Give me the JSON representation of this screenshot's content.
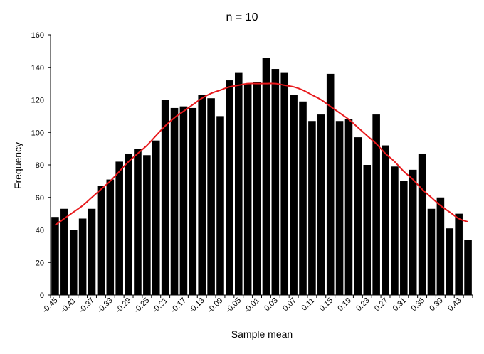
{
  "chart_data": {
    "type": "bar",
    "title": "n = 10",
    "xlabel": "Sample mean",
    "ylabel": "Frequency",
    "ylim": [
      0,
      160
    ],
    "yticks": [
      0,
      20,
      40,
      60,
      80,
      100,
      120,
      140,
      160
    ],
    "grid": false,
    "categories": [
      "-0.45",
      "-0.43",
      "-0.41",
      "-0.39",
      "-0.37",
      "-0.35",
      "-0.33",
      "-0.31",
      "-0.29",
      "-0.27",
      "-0.25",
      "-0.23",
      "-0.21",
      "-0.19",
      "-0.17",
      "-0.15",
      "-0.13",
      "-0.11",
      "-0.09",
      "-0.07",
      "-0.05",
      "-0.03",
      "-0.01",
      "0.01",
      "0.03",
      "0.05",
      "0.07",
      "0.09",
      "0.11",
      "0.13",
      "0.15",
      "0.17",
      "0.19",
      "0.21",
      "0.23",
      "0.25",
      "0.27",
      "0.29",
      "0.31",
      "0.33",
      "0.35",
      "0.37",
      "0.39",
      "0.41",
      "0.43",
      "0.45"
    ],
    "tick_labels": [
      "-0.45",
      "-0.41",
      "-0.37",
      "-0.33",
      "-0.29",
      "-0.25",
      "-0.21",
      "-0.17",
      "-0.13",
      "-0.09",
      "-0.05",
      "-0.01",
      "0.03",
      "0.07",
      "0.11",
      "0.15",
      "0.19",
      "0.23",
      "0.27",
      "0.31",
      "0.35",
      "0.39",
      "0.43"
    ],
    "values": [
      48,
      53,
      40,
      47,
      53,
      67,
      71,
      82,
      87,
      90,
      86,
      95,
      120,
      115,
      116,
      115,
      123,
      121,
      110,
      132,
      137,
      130,
      131,
      146,
      139,
      137,
      123,
      119,
      107,
      111,
      136,
      107,
      108,
      97,
      80,
      111,
      92,
      79,
      70,
      77,
      87,
      53,
      60,
      41,
      50,
      34
    ],
    "fit_curve": {
      "color": "#e8191c",
      "x": [
        "-0.45",
        "-0.43",
        "-0.41",
        "-0.39",
        "-0.37",
        "-0.35",
        "-0.33",
        "-0.31",
        "-0.29",
        "-0.27",
        "-0.25",
        "-0.23",
        "-0.21",
        "-0.19",
        "-0.17",
        "-0.15",
        "-0.13",
        "-0.11",
        "-0.09",
        "-0.07",
        "-0.05",
        "-0.03",
        "-0.01",
        "0.01",
        "0.03",
        "0.05",
        "0.07",
        "0.09",
        "0.11",
        "0.13",
        "0.15",
        "0.17",
        "0.19",
        "0.21",
        "0.23",
        "0.25",
        "0.27",
        "0.29",
        "0.31",
        "0.33",
        "0.35",
        "0.37",
        "0.39",
        "0.41",
        "0.43",
        "0.45"
      ],
      "y": [
        43,
        47,
        51,
        55,
        60,
        65,
        70,
        76,
        82,
        87,
        92,
        98,
        104,
        109,
        113,
        117,
        121,
        124,
        126,
        128,
        129,
        130,
        130,
        130,
        130,
        129,
        128,
        126,
        123,
        120,
        116,
        112,
        108,
        103,
        98,
        93,
        87,
        82,
        76,
        71,
        65,
        60,
        55,
        51,
        47,
        45
      ]
    },
    "colors": {
      "bar": "#000000",
      "axis": "#000000"
    }
  }
}
